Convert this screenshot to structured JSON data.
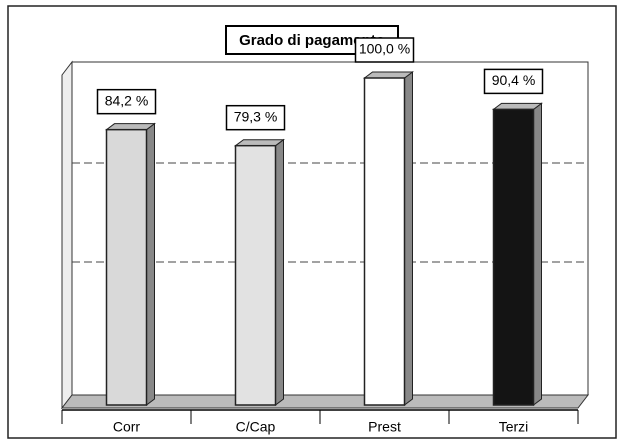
{
  "chart_data": {
    "type": "bar",
    "title": "Grado di pagamento",
    "categories": [
      "Corr",
      "C/Cap",
      "Prest",
      "Terzi"
    ],
    "values": [
      84.2,
      79.3,
      100.0,
      90.4
    ],
    "value_labels": [
      "84,2 %",
      "79,3 %",
      "100,0 %",
      "90,4 %"
    ],
    "colors": [
      "#d9d9d9",
      "#e2e2e2",
      "#ffffff",
      "#141414"
    ]
  }
}
